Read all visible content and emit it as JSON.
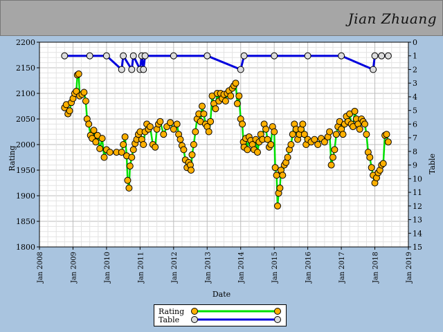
{
  "header": {
    "player_name": "Jian Zhuang"
  },
  "chart_data": {
    "type": "line",
    "title": "",
    "xlabel": "Date",
    "ylabel": "Rating",
    "y2label": "Table",
    "x_ticks": [
      "Jan 2008",
      "Jan 2009",
      "Jan 2010",
      "Jan 2011",
      "Jan 2012",
      "Jan 2013",
      "Jan 2014",
      "Jan 2015",
      "Jan 2016",
      "Jan 2017",
      "Jan 2018",
      "Jan 2019"
    ],
    "x_range": [
      2008.0,
      2019.0
    ],
    "ylim": [
      1800,
      2200
    ],
    "y_ticks": [
      1800,
      1850,
      1900,
      1950,
      2000,
      2050,
      2100,
      2150,
      2200
    ],
    "y2lim": [
      15,
      0
    ],
    "y2_ticks": [
      0,
      1,
      2,
      3,
      4,
      5,
      6,
      7,
      8,
      9,
      10,
      11,
      12,
      13,
      14,
      15
    ],
    "grid": true,
    "legend_position": "bottom-center",
    "series": [
      {
        "name": "Rating",
        "color": "#00e000",
        "marker_color": "#ffb000",
        "axis": "left",
        "points": [
          [
            2008.75,
            2072
          ],
          [
            2008.8,
            2078
          ],
          [
            2008.85,
            2060
          ],
          [
            2008.9,
            2066
          ],
          [
            2008.95,
            2082
          ],
          [
            2009.0,
            2090
          ],
          [
            2009.05,
            2100
          ],
          [
            2009.1,
            2104
          ],
          [
            2009.13,
            2136
          ],
          [
            2009.17,
            2138
          ],
          [
            2009.2,
            2095
          ],
          [
            2009.27,
            2098
          ],
          [
            2009.33,
            2102
          ],
          [
            2009.38,
            2085
          ],
          [
            2009.42,
            2050
          ],
          [
            2009.47,
            2040
          ],
          [
            2009.52,
            2018
          ],
          [
            2009.57,
            2012
          ],
          [
            2009.62,
            2028
          ],
          [
            2009.68,
            2005
          ],
          [
            2009.73,
            2018
          ],
          [
            2009.8,
            1992
          ],
          [
            2009.87,
            2012
          ],
          [
            2009.93,
            1975
          ],
          [
            2010.0,
            1990
          ],
          [
            2010.1,
            1985
          ],
          [
            2010.3,
            1985
          ],
          [
            2010.45,
            1985
          ],
          [
            2010.5,
            2000
          ],
          [
            2010.55,
            2015
          ],
          [
            2010.6,
            1978
          ],
          [
            2010.63,
            1930
          ],
          [
            2010.67,
            1915
          ],
          [
            2010.7,
            1958
          ],
          [
            2010.75,
            1975
          ],
          [
            2010.8,
            1990
          ],
          [
            2010.85,
            2002
          ],
          [
            2010.9,
            2010
          ],
          [
            2010.95,
            2020
          ],
          [
            2011.0,
            2025
          ],
          [
            2011.05,
            2010
          ],
          [
            2011.1,
            2000
          ],
          [
            2011.15,
            2025
          ],
          [
            2011.2,
            2040
          ],
          [
            2011.25,
            2030
          ],
          [
            2011.3,
            2035
          ],
          [
            2011.38,
            2000
          ],
          [
            2011.45,
            1995
          ],
          [
            2011.5,
            2030
          ],
          [
            2011.55,
            2040
          ],
          [
            2011.6,
            2045
          ],
          [
            2011.7,
            2020
          ],
          [
            2011.8,
            2035
          ],
          [
            2011.9,
            2043
          ],
          [
            2012.0,
            2030
          ],
          [
            2012.1,
            2040
          ],
          [
            2012.15,
            2020
          ],
          [
            2012.2,
            2010
          ],
          [
            2012.25,
            1998
          ],
          [
            2012.3,
            1990
          ],
          [
            2012.35,
            1970
          ],
          [
            2012.4,
            1955
          ],
          [
            2012.45,
            1965
          ],
          [
            2012.5,
            1960
          ],
          [
            2012.52,
            1950
          ],
          [
            2012.55,
            1980
          ],
          [
            2012.6,
            2000
          ],
          [
            2012.65,
            2025
          ],
          [
            2012.7,
            2050
          ],
          [
            2012.75,
            2060
          ],
          [
            2012.8,
            2045
          ],
          [
            2012.85,
            2075
          ],
          [
            2012.9,
            2060
          ],
          [
            2012.95,
            2040
          ],
          [
            2013.0,
            2035
          ],
          [
            2013.05,
            2025
          ],
          [
            2013.1,
            2045
          ],
          [
            2013.15,
            2095
          ],
          [
            2013.2,
            2080
          ],
          [
            2013.25,
            2070
          ],
          [
            2013.3,
            2100
          ],
          [
            2013.35,
            2085
          ],
          [
            2013.4,
            2100
          ],
          [
            2013.45,
            2090
          ],
          [
            2013.5,
            2098
          ],
          [
            2013.55,
            2085
          ],
          [
            2013.6,
            2100
          ],
          [
            2013.65,
            2105
          ],
          [
            2013.7,
            2095
          ],
          [
            2013.75,
            2110
          ],
          [
            2013.8,
            2115
          ],
          [
            2013.85,
            2120
          ],
          [
            2013.9,
            2080
          ],
          [
            2013.95,
            2095
          ],
          [
            2014.0,
            2050
          ],
          [
            2014.05,
            2040
          ],
          [
            2014.08,
            2005
          ],
          [
            2014.1,
            1995
          ],
          [
            2014.15,
            2012
          ],
          [
            2014.2,
            1990
          ],
          [
            2014.25,
            2015
          ],
          [
            2014.3,
            2008
          ],
          [
            2014.35,
            2000
          ],
          [
            2014.4,
            1990
          ],
          [
            2014.45,
            2010
          ],
          [
            2014.5,
            1985
          ],
          [
            2014.55,
            2005
          ],
          [
            2014.6,
            2020
          ],
          [
            2014.65,
            2010
          ],
          [
            2014.7,
            2040
          ],
          [
            2014.75,
            2030
          ],
          [
            2014.8,
            2010
          ],
          [
            2014.85,
            1995
          ],
          [
            2014.9,
            2000
          ],
          [
            2014.95,
            2035
          ],
          [
            2015.0,
            2025
          ],
          [
            2015.03,
            1955
          ],
          [
            2015.07,
            1940
          ],
          [
            2015.1,
            1880
          ],
          [
            2015.13,
            1905
          ],
          [
            2015.17,
            1915
          ],
          [
            2015.2,
            1950
          ],
          [
            2015.25,
            1940
          ],
          [
            2015.3,
            1960
          ],
          [
            2015.35,
            1965
          ],
          [
            2015.4,
            1975
          ],
          [
            2015.45,
            1990
          ],
          [
            2015.5,
            2000
          ],
          [
            2015.55,
            2020
          ],
          [
            2015.6,
            2040
          ],
          [
            2015.65,
            2030
          ],
          [
            2015.7,
            2010
          ],
          [
            2015.75,
            2020
          ],
          [
            2015.8,
            2030
          ],
          [
            2015.85,
            2040
          ],
          [
            2015.9,
            2020
          ],
          [
            2015.95,
            2000
          ],
          [
            2016.0,
            2010
          ],
          [
            2016.1,
            2005
          ],
          [
            2016.2,
            2010
          ],
          [
            2016.3,
            2000
          ],
          [
            2016.4,
            2012
          ],
          [
            2016.5,
            2005
          ],
          [
            2016.6,
            2015
          ],
          [
            2016.65,
            2025
          ],
          [
            2016.7,
            1960
          ],
          [
            2016.75,
            1975
          ],
          [
            2016.8,
            1990
          ],
          [
            2016.85,
            2020
          ],
          [
            2016.9,
            2035
          ],
          [
            2016.95,
            2045
          ],
          [
            2017.0,
            2030
          ],
          [
            2017.05,
            2020
          ],
          [
            2017.1,
            2040
          ],
          [
            2017.15,
            2055
          ],
          [
            2017.2,
            2045
          ],
          [
            2017.25,
            2060
          ],
          [
            2017.3,
            2040
          ],
          [
            2017.35,
            2035
          ],
          [
            2017.4,
            2065
          ],
          [
            2017.45,
            2050
          ],
          [
            2017.5,
            2040
          ],
          [
            2017.55,
            2030
          ],
          [
            2017.6,
            2050
          ],
          [
            2017.65,
            2045
          ],
          [
            2017.7,
            2040
          ],
          [
            2017.75,
            2020
          ],
          [
            2017.8,
            1985
          ],
          [
            2017.85,
            1975
          ],
          [
            2017.9,
            1955
          ],
          [
            2017.95,
            1940
          ],
          [
            2018.0,
            1925
          ],
          [
            2018.05,
            1935
          ],
          [
            2018.1,
            1945
          ],
          [
            2018.15,
            1950
          ],
          [
            2018.2,
            1960
          ],
          [
            2018.25,
            1963
          ],
          [
            2018.3,
            2018
          ],
          [
            2018.35,
            2020
          ],
          [
            2018.4,
            2005
          ]
        ]
      },
      {
        "name": "Table",
        "color": "#0000dd",
        "marker_color": "#dddddd",
        "axis": "right",
        "points": [
          [
            2008.75,
            1
          ],
          [
            2009.5,
            1
          ],
          [
            2010.0,
            1
          ],
          [
            2010.45,
            2
          ],
          [
            2010.5,
            1
          ],
          [
            2010.75,
            2
          ],
          [
            2010.8,
            1
          ],
          [
            2011.0,
            2
          ],
          [
            2011.05,
            1
          ],
          [
            2011.1,
            2
          ],
          [
            2011.15,
            1
          ],
          [
            2012.0,
            1
          ],
          [
            2013.0,
            1
          ],
          [
            2014.0,
            2
          ],
          [
            2014.1,
            1
          ],
          [
            2015.0,
            1
          ],
          [
            2016.0,
            1
          ],
          [
            2017.0,
            1
          ],
          [
            2017.95,
            2
          ],
          [
            2018.0,
            1
          ],
          [
            2018.2,
            1
          ],
          [
            2018.4,
            1
          ]
        ]
      }
    ]
  }
}
